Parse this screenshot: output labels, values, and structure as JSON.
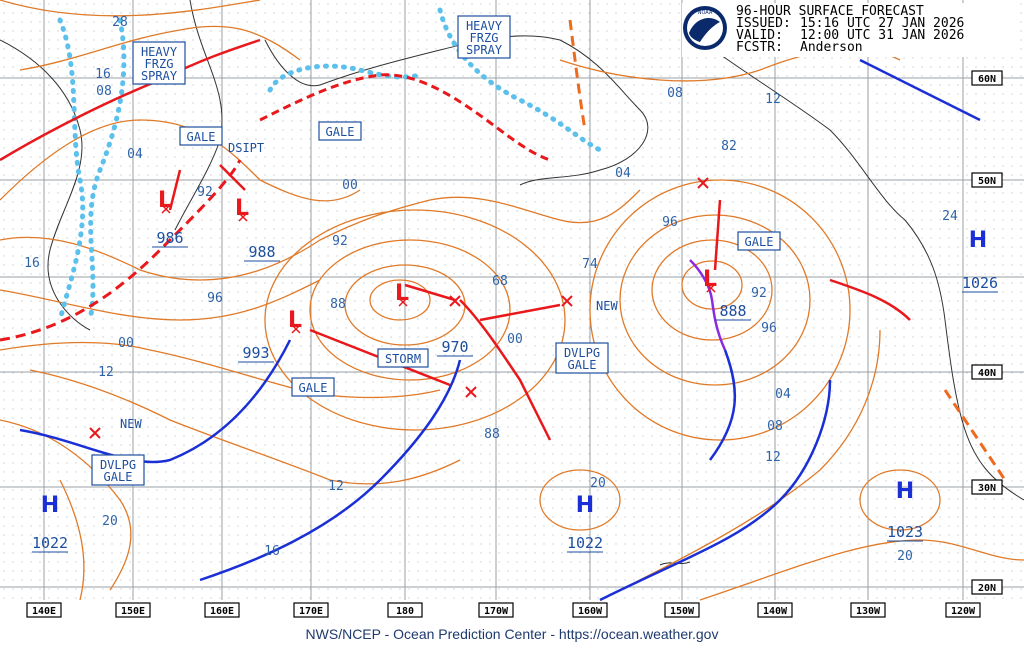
{
  "header": {
    "title": "96-HOUR SURFACE FORECAST",
    "issued_label": "ISSUED:",
    "issued": "15:16 UTC 27 JAN 2026",
    "valid_label": "VALID:",
    "valid": "12:00 UTC 31 JAN 2026",
    "fcstr_label": "FCSTR:",
    "forecaster": "Anderson",
    "logo_text": "NOAA"
  },
  "footer": "NWS/NCEP - Ocean Prediction Center - https://ocean.weather.gov",
  "lon_labels": [
    "140E",
    "150E",
    "160E",
    "170E",
    "180",
    "170W",
    "160W",
    "150W",
    "140W",
    "130W",
    "120W"
  ],
  "lat_labels": [
    "60N",
    "50N",
    "40N",
    "30N",
    "20N"
  ],
  "colors": {
    "isobar": "#e07a28",
    "cold_front": "#1a2fd6",
    "warm_front": "#e8181c",
    "occluded": "#8a2be2",
    "freezing_spray": "#5bc0eb",
    "label": "#1d4fa0",
    "track": "#e8181c"
  },
  "systems": [
    {
      "type": "L",
      "pressure": "986"
    },
    {
      "type": "L",
      "pressure": "988"
    },
    {
      "type": "L",
      "pressure": "993"
    },
    {
      "type": "L",
      "pressure": "970"
    },
    {
      "type": "L",
      "pressure": "888"
    },
    {
      "type": "H",
      "pressure": "1026"
    },
    {
      "type": "H",
      "pressure": "1022"
    },
    {
      "type": "H",
      "pressure": "1022"
    },
    {
      "type": "H",
      "pressure": "1023"
    }
  ],
  "warnings": {
    "heavy_frzg_spray": [
      "HEAVY",
      "FRZG",
      "SPRAY"
    ],
    "gale": "GALE",
    "storm": "STORM",
    "dvlpg_gale": [
      "DVLPG",
      "GALE"
    ]
  },
  "annotations": {
    "dsipt": "DSIPT",
    "new": "NEW"
  },
  "isobar_labels": [
    "28",
    "16",
    "12",
    "08",
    "04",
    "00",
    "96",
    "92",
    "92",
    "88",
    "82",
    "74",
    "68",
    "20",
    "24",
    "16",
    "12",
    "08",
    "04",
    "00",
    "96",
    "92",
    "12",
    "16",
    "20",
    "20",
    "12",
    "08",
    "04",
    "96",
    "88",
    "00"
  ]
}
